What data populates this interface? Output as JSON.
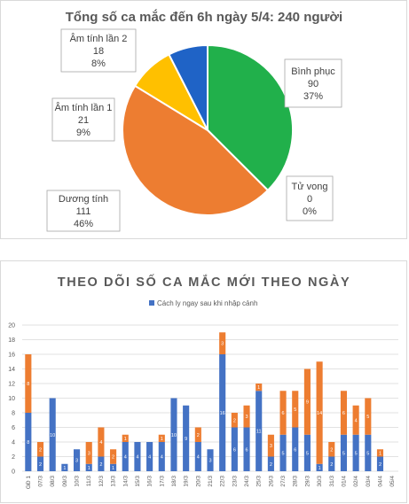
{
  "pie": {
    "chart_data": {
      "type": "pie",
      "title": "Tổng số ca mắc đến 6h ngày 5/4: 240 người",
      "slices": [
        {
          "name": "Bình phục",
          "value": 90,
          "percent": "37%",
          "color": "#21b04b"
        },
        {
          "name": "Tử vong",
          "value": 0,
          "percent": "0%",
          "color": "#5b9bd5"
        },
        {
          "name": "Dương tính",
          "value": 111,
          "percent": "46%",
          "color": "#ed7d31"
        },
        {
          "name": "Âm tính lần 1",
          "value": 21,
          "percent": "9%",
          "color": "#ffc000"
        },
        {
          "name": "Âm tính lần 2",
          "value": 18,
          "percent": "8%",
          "color": "#1f63c6"
        }
      ]
    }
  },
  "bars": {
    "chart_data": {
      "type": "bar",
      "stacked": true,
      "title": "THEO DÕI SỐ CA MẮC MỚI THEO NGÀY",
      "categories": [
        "GĐ 1",
        "07/3",
        "08/3",
        "09/3",
        "10/3",
        "11/3",
        "12/3",
        "13/3",
        "14/3",
        "15/3",
        "16/3",
        "17/3",
        "18/3",
        "19/3",
        "20/3",
        "21/3",
        "22/3",
        "23/3",
        "24/3",
        "25/3",
        "26/3",
        "27/3",
        "28/3",
        "29/3",
        "30/3",
        "31/3",
        "01/4",
        "02/4",
        "03/4",
        "04/4",
        "05/4"
      ],
      "series": [
        {
          "name": "Cách ly ngay sau khi nhập cảnh",
          "color": "#4472c4",
          "values": [
            8,
            2,
            10,
            1,
            3,
            1,
            2,
            1,
            4,
            4,
            4,
            4,
            10,
            9,
            4,
            3,
            16,
            6,
            6,
            11,
            2,
            5,
            6,
            5,
            1,
            2,
            5,
            5,
            5,
            2,
            0
          ]
        },
        {
          "values": [
            8,
            2,
            0,
            0,
            0,
            3,
            4,
            2,
            1,
            0,
            0,
            1,
            0,
            0,
            2,
            0,
            3,
            2,
            3,
            1,
            3,
            6,
            5,
            9,
            14,
            2,
            6,
            4,
            5,
            1,
            0
          ],
          "color": "#ed7d31"
        }
      ],
      "ylim": [
        0,
        20
      ],
      "yticks": [
        0,
        2,
        4,
        6,
        8,
        10,
        12,
        14,
        16,
        18,
        20
      ],
      "grid": true,
      "legend": "top"
    }
  }
}
